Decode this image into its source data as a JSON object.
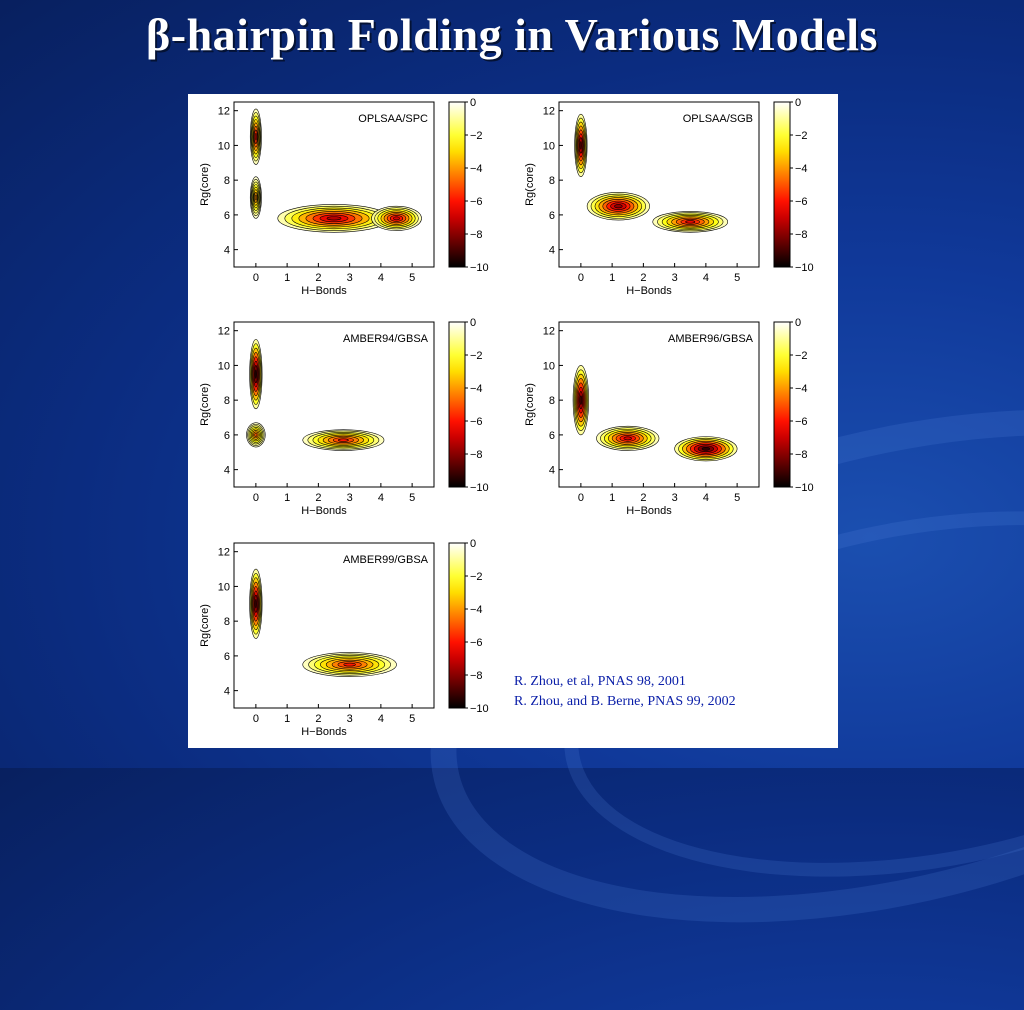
{
  "slide": {
    "title": "β-hairpin Folding in Various Models",
    "references": [
      "R. Zhou, et al, PNAS 98, 2001",
      "R. Zhou, and B. Berne, PNAS 99, 2002"
    ]
  },
  "chart_data": [
    {
      "type": "heatmap",
      "title": "OPLSAA/SPC",
      "xlabel": "H−Bonds",
      "ylabel": "Rg(core)",
      "xticks": [
        0,
        1,
        2,
        3,
        4,
        5
      ],
      "yticks": [
        4,
        6,
        8,
        10,
        12
      ],
      "xlim": [
        -0.7,
        5.7
      ],
      "ylim": [
        3,
        12.5
      ],
      "colorbar": {
        "ticks": [
          0,
          -2,
          -4,
          -6,
          -8,
          -10
        ],
        "range": [
          -10,
          0
        ]
      },
      "density": [
        {
          "x": 0,
          "y": 10.5,
          "value": -6.5,
          "sx": 0.18,
          "sy": 1.6
        },
        {
          "x": 0,
          "y": 7.0,
          "value": -4.5,
          "sx": 0.18,
          "sy": 1.2
        },
        {
          "x": 2.5,
          "y": 5.8,
          "value": -7.5,
          "sx": 1.8,
          "sy": 0.8
        },
        {
          "x": 4.5,
          "y": 5.8,
          "value": -7.0,
          "sx": 0.8,
          "sy": 0.7
        }
      ]
    },
    {
      "type": "heatmap",
      "title": "OPLSAA/SGB",
      "xlabel": "H−Bonds",
      "ylabel": "Rg(core)",
      "xticks": [
        0,
        1,
        2,
        3,
        4,
        5
      ],
      "yticks": [
        4,
        6,
        8,
        10,
        12
      ],
      "xlim": [
        -0.7,
        5.7
      ],
      "ylim": [
        3,
        12.5
      ],
      "colorbar": {
        "ticks": [
          0,
          -2,
          -4,
          -6,
          -8,
          -10
        ],
        "range": [
          -10,
          0
        ]
      },
      "density": [
        {
          "x": 0,
          "y": 10.0,
          "value": -8.5,
          "sx": 0.2,
          "sy": 1.8
        },
        {
          "x": 1.2,
          "y": 6.5,
          "value": -8.0,
          "sx": 1.0,
          "sy": 0.8
        },
        {
          "x": 3.5,
          "y": 5.6,
          "value": -6.5,
          "sx": 1.2,
          "sy": 0.6
        }
      ]
    },
    {
      "type": "heatmap",
      "title": "AMBER94/GBSA",
      "xlabel": "H−Bonds",
      "ylabel": "Rg(core)",
      "xticks": [
        0,
        1,
        2,
        3,
        4,
        5
      ],
      "yticks": [
        4,
        6,
        8,
        10,
        12
      ],
      "xlim": [
        -0.7,
        5.7
      ],
      "ylim": [
        3,
        12.5
      ],
      "colorbar": {
        "ticks": [
          0,
          -2,
          -4,
          -6,
          -8,
          -10
        ],
        "range": [
          -10,
          0
        ]
      },
      "density": [
        {
          "x": 0,
          "y": 9.5,
          "value": -9.5,
          "sx": 0.2,
          "sy": 2.0
        },
        {
          "x": 0,
          "y": 6.0,
          "value": -5.0,
          "sx": 0.3,
          "sy": 0.7
        },
        {
          "x": 2.8,
          "y": 5.7,
          "value": -6.0,
          "sx": 1.3,
          "sy": 0.6
        }
      ]
    },
    {
      "type": "heatmap",
      "title": "AMBER96/GBSA",
      "xlabel": "H−Bonds",
      "ylabel": "Rg(core)",
      "xticks": [
        0,
        1,
        2,
        3,
        4,
        5
      ],
      "yticks": [
        4,
        6,
        8,
        10,
        12
      ],
      "xlim": [
        -0.7,
        5.7
      ],
      "ylim": [
        3,
        12.5
      ],
      "colorbar": {
        "ticks": [
          0,
          -2,
          -4,
          -6,
          -8,
          -10
        ],
        "range": [
          -10,
          0
        ]
      },
      "density": [
        {
          "x": 0,
          "y": 8.0,
          "value": -9.0,
          "sx": 0.25,
          "sy": 2.0
        },
        {
          "x": 1.5,
          "y": 5.8,
          "value": -7.0,
          "sx": 1.0,
          "sy": 0.7
        },
        {
          "x": 4.0,
          "y": 5.2,
          "value": -9.5,
          "sx": 1.0,
          "sy": 0.7
        }
      ]
    },
    {
      "type": "heatmap",
      "title": "AMBER99/GBSA",
      "xlabel": "H−Bonds",
      "ylabel": "Rg(core)",
      "xticks": [
        0,
        1,
        2,
        3,
        4,
        5
      ],
      "yticks": [
        4,
        6,
        8,
        10,
        12
      ],
      "xlim": [
        -0.7,
        5.7
      ],
      "ylim": [
        3,
        12.5
      ],
      "colorbar": {
        "ticks": [
          0,
          -2,
          -4,
          -6,
          -8,
          -10
        ],
        "range": [
          -10,
          0
        ]
      },
      "density": [
        {
          "x": 0,
          "y": 9.0,
          "value": -9.0,
          "sx": 0.2,
          "sy": 2.0
        },
        {
          "x": 3.0,
          "y": 5.5,
          "value": -6.0,
          "sx": 1.5,
          "sy": 0.7
        }
      ]
    }
  ]
}
